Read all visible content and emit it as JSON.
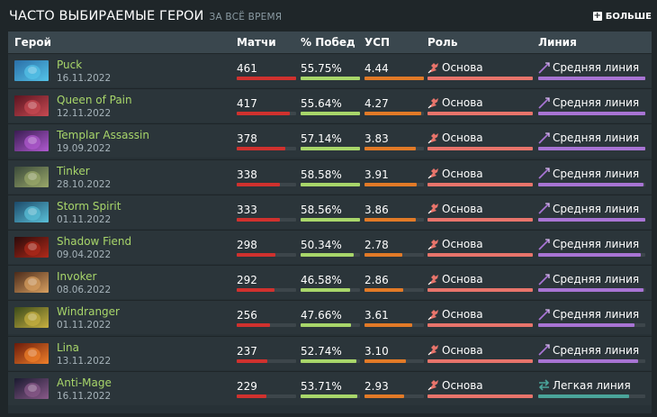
{
  "header": {
    "title": "ЧАСТО ВЫБИРАЕМЫЕ ГЕРОИ",
    "subtitle": "ЗА ВСЁ ВРЕМЯ",
    "more_label": "БОЛЬШЕ"
  },
  "columns": {
    "hero": "Герой",
    "matches": "Матчи",
    "winrate": "% Побед",
    "kda": "УСП",
    "role": "Роль",
    "lane": "Линия"
  },
  "colors": {
    "matches_bar": "#d0312e",
    "winrate_bar": "#a8d66a",
    "kda_bar": "#e27a27",
    "role_bar": "#e8746b",
    "lane_mid": "#a874d4",
    "lane_safe": "#4aa49a",
    "hero_name": "#a8d66a"
  },
  "rows": [
    {
      "name": "Puck",
      "date": "16.11.2022",
      "matches": "461",
      "winrate": "55.75%",
      "kda": "4.44",
      "role": "Основа",
      "lane": "Средняя линия",
      "lane_type": "mid",
      "matches_frac": 1.0,
      "winrate_frac": 1.0,
      "kda_frac": 1.0,
      "role_frac": 1.0,
      "lane_frac": 1.0,
      "role_icon": "role-core-icon",
      "lane_icon": "mid-lane-icon",
      "portrait": "puck-portrait",
      "pc": [
        "#2a6fa8",
        "#54c3e8"
      ]
    },
    {
      "name": "Queen of Pain",
      "date": "12.11.2022",
      "matches": "417",
      "winrate": "55.64%",
      "kda": "4.27",
      "role": "Основа",
      "lane": "Средняя линия",
      "lane_type": "mid",
      "matches_frac": 0.9,
      "winrate_frac": 1.0,
      "kda_frac": 0.96,
      "role_frac": 1.0,
      "lane_frac": 1.0,
      "role_icon": "role-core-icon",
      "lane_icon": "mid-lane-icon",
      "portrait": "queen-of-pain-portrait",
      "pc": [
        "#5a1420",
        "#c84a52"
      ]
    },
    {
      "name": "Templar Assassin",
      "date": "19.09.2022",
      "matches": "378",
      "winrate": "57.14%",
      "kda": "3.83",
      "role": "Основа",
      "lane": "Средняя линия",
      "lane_type": "mid",
      "matches_frac": 0.82,
      "winrate_frac": 1.0,
      "kda_frac": 0.86,
      "role_frac": 1.0,
      "lane_frac": 1.0,
      "role_icon": "role-core-icon",
      "lane_icon": "mid-lane-icon",
      "portrait": "templar-assassin-portrait",
      "pc": [
        "#3a1c52",
        "#b05ad0"
      ]
    },
    {
      "name": "Tinker",
      "date": "28.10.2022",
      "matches": "338",
      "winrate": "58.58%",
      "kda": "3.91",
      "role": "Основа",
      "lane": "Средняя линия",
      "lane_type": "mid",
      "matches_frac": 0.73,
      "winrate_frac": 1.0,
      "kda_frac": 0.88,
      "role_frac": 1.0,
      "lane_frac": 0.98,
      "role_icon": "role-core-icon",
      "lane_icon": "mid-lane-icon",
      "portrait": "tinker-portrait",
      "pc": [
        "#3b4a3a",
        "#9aa86a"
      ]
    },
    {
      "name": "Storm Spirit",
      "date": "01.11.2022",
      "matches": "333",
      "winrate": "58.56%",
      "kda": "3.86",
      "role": "Основа",
      "lane": "Средняя линия",
      "lane_type": "mid",
      "matches_frac": 0.72,
      "winrate_frac": 1.0,
      "kda_frac": 0.87,
      "role_frac": 1.0,
      "lane_frac": 1.0,
      "role_icon": "role-core-icon",
      "lane_icon": "mid-lane-icon",
      "portrait": "storm-spirit-portrait",
      "pc": [
        "#1c4a6a",
        "#5ac0d8"
      ]
    },
    {
      "name": "Shadow Fiend",
      "date": "09.04.2022",
      "matches": "298",
      "winrate": "50.34%",
      "kda": "2.78",
      "role": "Основа",
      "lane": "Средняя линия",
      "lane_type": "mid",
      "matches_frac": 0.65,
      "winrate_frac": 0.9,
      "kda_frac": 0.63,
      "role_frac": 1.0,
      "lane_frac": 0.96,
      "role_icon": "role-core-icon",
      "lane_icon": "mid-lane-icon",
      "portrait": "shadow-fiend-portrait",
      "pc": [
        "#2a0a0a",
        "#b02a1a"
      ]
    },
    {
      "name": "Invoker",
      "date": "08.06.2022",
      "matches": "292",
      "winrate": "46.58%",
      "kda": "2.86",
      "role": "Основа",
      "lane": "Средняя линия",
      "lane_type": "mid",
      "matches_frac": 0.63,
      "winrate_frac": 0.83,
      "kda_frac": 0.65,
      "role_frac": 1.0,
      "lane_frac": 0.98,
      "role_icon": "role-core-icon",
      "lane_icon": "mid-lane-icon",
      "portrait": "invoker-portrait",
      "pc": [
        "#4a2a1a",
        "#d8a060"
      ]
    },
    {
      "name": "Windranger",
      "date": "01.11.2022",
      "matches": "256",
      "winrate": "47.66%",
      "kda": "3.61",
      "role": "Основа",
      "lane": "Средняя линия",
      "lane_type": "mid",
      "matches_frac": 0.56,
      "winrate_frac": 0.85,
      "kda_frac": 0.81,
      "role_frac": 1.0,
      "lane_frac": 0.9,
      "role_icon": "role-core-icon",
      "lane_icon": "mid-lane-icon",
      "portrait": "windranger-portrait",
      "pc": [
        "#3a4a1a",
        "#c8b040"
      ]
    },
    {
      "name": "Lina",
      "date": "13.11.2022",
      "matches": "237",
      "winrate": "52.74%",
      "kda": "3.10",
      "role": "Основа",
      "lane": "Средняя линия",
      "lane_type": "mid",
      "matches_frac": 0.51,
      "winrate_frac": 0.94,
      "kda_frac": 0.7,
      "role_frac": 1.0,
      "lane_frac": 0.93,
      "role_icon": "role-core-icon",
      "lane_icon": "mid-lane-icon",
      "portrait": "lina-portrait",
      "pc": [
        "#6a1a0a",
        "#f0802a"
      ]
    },
    {
      "name": "Anti-Mage",
      "date": "16.11.2022",
      "matches": "229",
      "winrate": "53.71%",
      "kda": "2.93",
      "role": "Основа",
      "lane": "Легкая линия",
      "lane_type": "safe",
      "matches_frac": 0.5,
      "winrate_frac": 0.96,
      "kda_frac": 0.66,
      "role_frac": 1.0,
      "lane_frac": 0.85,
      "role_icon": "role-core-icon",
      "lane_icon": "safe-lane-icon",
      "portrait": "anti-mage-portrait",
      "pc": [
        "#1a1a30",
        "#8a5a8a"
      ]
    }
  ]
}
